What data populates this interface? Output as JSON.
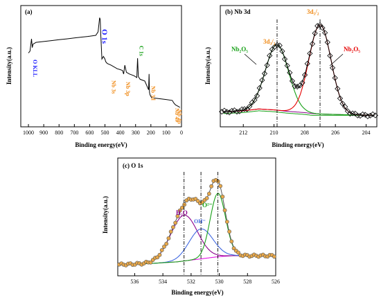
{
  "chart_data": [
    {
      "type": "line",
      "panel": "(a)",
      "xlabel": "Binding energy(eV)",
      "ylabel": "Intensity(a.u.)",
      "xlim": [
        1050,
        0
      ],
      "xticks": [
        "1000",
        "900",
        "800",
        "700",
        "600",
        "500",
        "400",
        "300",
        "200",
        "100",
        "0"
      ],
      "tick_values": [
        1000,
        900,
        800,
        700,
        600,
        500,
        400,
        300,
        200,
        100,
        0
      ],
      "series": [
        {
          "x": [
            1000,
            990,
            980,
            975,
            970,
            960,
            950,
            900,
            850,
            800,
            750,
            700,
            650,
            600,
            560,
            545,
            535,
            531,
            528,
            520,
            510,
            500,
            495,
            485,
            460,
            420,
            400,
            385,
            378,
            370,
            360,
            340,
            310,
            292,
            287,
            282,
            270,
            240,
            215,
            212,
            209,
            205,
            195,
            150,
            100,
            60,
            50,
            40,
            30,
            20,
            10
          ],
          "y": [
            0.62,
            0.64,
            0.78,
            0.68,
            0.72,
            0.73,
            0.74,
            0.75,
            0.76,
            0.77,
            0.78,
            0.79,
            0.8,
            0.81,
            0.82,
            0.86,
            1.02,
            1.0,
            0.86,
            0.55,
            0.58,
            0.55,
            0.52,
            0.5,
            0.48,
            0.44,
            0.43,
            0.42,
            0.38,
            0.48,
            0.4,
            0.38,
            0.36,
            0.34,
            0.56,
            0.35,
            0.32,
            0.3,
            0.2,
            0.38,
            0.17,
            0.14,
            0.11,
            0.1,
            0.09,
            0.08,
            0.05,
            0.03,
            0.02,
            0.01,
            0.0
          ]
        }
      ],
      "annotations": [
        {
          "text": "O KLL",
          "x": 982,
          "color": "#1a1aff",
          "rotate": true
        },
        {
          "text": "O 1s",
          "x": 531,
          "color": "#1a1aff",
          "rotate": true
        },
        {
          "text": "Nb 3s",
          "x": 468,
          "color": "#f08c1a",
          "rotate": true
        },
        {
          "text": "Nb 3p",
          "x": 375,
          "color": "#f08c1a",
          "rotate": true
        },
        {
          "text": "C 1s",
          "x": 287,
          "color": "#16a016",
          "rotate": true
        },
        {
          "text": "Nb 3d",
          "x": 210,
          "color": "#f08c1a",
          "rotate": true
        },
        {
          "text": "Nb 4s",
          "x": 55,
          "color": "#f08c1a",
          "rotate": true
        },
        {
          "text": "Nb 4p",
          "x": 38,
          "color": "#f08c1a",
          "rotate": true
        }
      ]
    },
    {
      "type": "line",
      "panel": "(b) Nb 3d",
      "xlabel": "Binding energy(eV)",
      "ylabel": "Intensity(a.u.)",
      "xlim": [
        213.5,
        203.3
      ],
      "ylim": [
        -0.05,
        1.1
      ],
      "xticks": [
        "212",
        "210",
        "208",
        "206",
        "204"
      ],
      "tick_values": [
        212,
        210,
        208,
        206,
        204
      ],
      "background": {
        "x": [
          213.3,
          212,
          211,
          210,
          209.2,
          208,
          207.5,
          207,
          206,
          205,
          204,
          203.3
        ],
        "y": [
          0.04,
          0.05,
          0.07,
          0.06,
          0.045,
          0.03,
          0.02,
          0.015,
          0.01,
          0.005,
          0.0,
          0.0
        ]
      },
      "peaks": [
        {
          "name": "3d3/2",
          "center": 209.8,
          "height": 0.72,
          "width": 0.75,
          "color": "#16a016"
        },
        {
          "name": "3d5/2",
          "center": 207.0,
          "height": 0.98,
          "width": 0.72,
          "color": "#e60000"
        }
      ],
      "dashed_lines": [
        209.8,
        207.0
      ],
      "annotations": [
        {
          "text": "Nb₂O₅",
          "color": "#16a016"
        },
        {
          "text": "3d₃/₂",
          "color": "#f08c1a"
        },
        {
          "text": "3d₅/₂",
          "color": "#f08c1a"
        },
        {
          "text": "Nb₂O₅",
          "color": "#e60000"
        }
      ]
    },
    {
      "type": "line",
      "panel": "(c) O 1s",
      "xlabel": "Binding energy(eV)",
      "ylabel": "Intensity(a.u.)",
      "xlim": [
        537.2,
        526
      ],
      "ylim": [
        -0.05,
        1.1
      ],
      "xticks": [
        "536",
        "534",
        "532",
        "530",
        "528",
        "526"
      ],
      "tick_values": [
        536,
        534,
        532,
        530,
        528,
        526
      ],
      "background": {
        "x": [
          537,
          535,
          533,
          532,
          531,
          530,
          529,
          527,
          526
        ],
        "y": [
          0.0,
          0.01,
          0.03,
          0.05,
          0.07,
          0.09,
          0.1,
          0.1,
          0.1
        ]
      },
      "peaks": [
        {
          "name": "H₂O",
          "center": 532.5,
          "height": 0.52,
          "width": 0.95,
          "color": "#8b008b"
        },
        {
          "name": "OH⁻",
          "center": 531.3,
          "height": 0.34,
          "width": 0.85,
          "color": "#4169e1"
        },
        {
          "name": "O²⁻",
          "center": 530.1,
          "height": 0.72,
          "width": 0.55,
          "color": "#16a016"
        }
      ],
      "dashed_lines": [
        532.5,
        531.3,
        530.1
      ],
      "annotations": [
        {
          "text": "H₂O",
          "color": "#8b008b"
        },
        {
          "text": "OH⁻",
          "color": "#4169e1"
        },
        {
          "text": "O²⁻",
          "color": "#16a016"
        }
      ]
    }
  ]
}
